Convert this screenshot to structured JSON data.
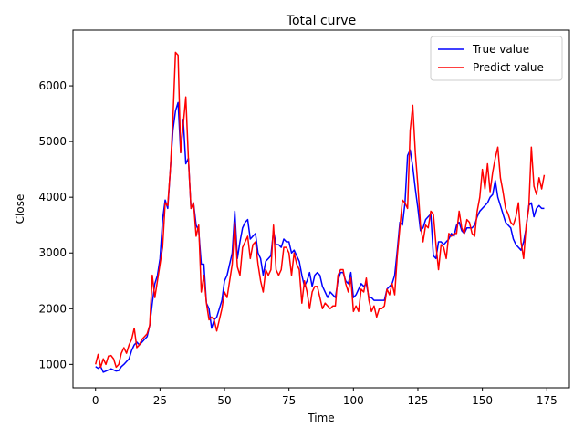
{
  "chart_data": {
    "type": "line",
    "title": "Total curve",
    "xlabel": "Time",
    "ylabel": "Close",
    "xlim": [
      -8.75,
      183.75
    ],
    "ylim": [
      580,
      7000
    ],
    "xticks": [
      0,
      25,
      50,
      75,
      100,
      125,
      150,
      175
    ],
    "yticks": [
      1000,
      2000,
      3000,
      4000,
      5000,
      6000
    ],
    "grid": false,
    "legend_position": "top-right",
    "series": [
      {
        "name": "True value",
        "color": "#0000ff",
        "values": [
          960,
          930,
          960,
          860,
          880,
          900,
          920,
          900,
          880,
          890,
          960,
          1000,
          1050,
          1100,
          1250,
          1350,
          1400,
          1350,
          1400,
          1450,
          1500,
          1700,
          2100,
          2450,
          2600,
          2900,
          3600,
          3950,
          3800,
          4500,
          5200,
          5550,
          5700,
          4800,
          5400,
          4600,
          4700,
          3800,
          3900,
          3500,
          3400,
          2800,
          2800,
          2100,
          2000,
          1650,
          1800,
          1850,
          2000,
          2150,
          2500,
          2600,
          2800,
          3000,
          3750,
          2900,
          3200,
          3450,
          3550,
          3600,
          3250,
          3300,
          3350,
          3000,
          2900,
          2600,
          2850,
          2900,
          2950,
          3400,
          3150,
          3150,
          3100,
          3250,
          3200,
          3200,
          3000,
          3050,
          2950,
          2850,
          2600,
          2400,
          2500,
          2650,
          2400,
          2600,
          2650,
          2600,
          2400,
          2300,
          2200,
          2300,
          2250,
          2200,
          2500,
          2650,
          2650,
          2500,
          2450,
          2650,
          2200,
          2250,
          2350,
          2450,
          2400,
          2450,
          2200,
          2200,
          2150,
          2150,
          2150,
          2150,
          2150,
          2350,
          2400,
          2450,
          2600,
          3050,
          3550,
          3500,
          3900,
          4750,
          4850,
          4550,
          4150,
          3800,
          3400,
          3450,
          3600,
          3650,
          3700,
          2950,
          2900,
          3200,
          3200,
          3150,
          3200,
          3250,
          3350,
          3300,
          3500,
          3550,
          3400,
          3350,
          3450,
          3450,
          3450,
          3500,
          3650,
          3750,
          3800,
          3850,
          3900,
          4000,
          4050,
          4300,
          4000,
          3850,
          3700,
          3550,
          3500,
          3450,
          3250,
          3150,
          3100,
          3050,
          3200,
          3450,
          3850,
          3900,
          3650,
          3800,
          3850,
          3800,
          3800
        ]
      },
      {
        "name": "Predict value",
        "color": "#ff0000",
        "values": [
          1000,
          1180,
          950,
          1100,
          1000,
          1150,
          1160,
          1100,
          950,
          1000,
          1200,
          1300,
          1200,
          1350,
          1450,
          1650,
          1300,
          1350,
          1450,
          1500,
          1550,
          1700,
          2600,
          2200,
          2500,
          2800,
          3100,
          3900,
          3850,
          4500,
          5400,
          6600,
          6550,
          4800,
          5300,
          5800,
          4700,
          3800,
          3900,
          3300,
          3500,
          2300,
          2600,
          2100,
          1800,
          1850,
          1800,
          1600,
          1800,
          2000,
          2300,
          2200,
          2500,
          2800,
          3550,
          2750,
          2600,
          3100,
          3200,
          3300,
          2900,
          3150,
          3200,
          2800,
          2500,
          2300,
          2700,
          2600,
          2700,
          3500,
          2700,
          2600,
          2700,
          3100,
          3100,
          3000,
          2600,
          3000,
          2800,
          2700,
          2100,
          2500,
          2300,
          2000,
          2300,
          2400,
          2400,
          2200,
          2000,
          2100,
          2050,
          2000,
          2050,
          2050,
          2600,
          2700,
          2700,
          2450,
          2300,
          2550,
          1950,
          2050,
          1950,
          2350,
          2300,
          2550,
          2150,
          1950,
          2050,
          1850,
          2000,
          2000,
          2050,
          2350,
          2250,
          2450,
          2250,
          2950,
          3450,
          3950,
          3900,
          3800,
          5200,
          5650,
          4800,
          4200,
          3500,
          3200,
          3500,
          3450,
          3750,
          3700,
          3150,
          2700,
          3150,
          3100,
          2900,
          3350,
          3300,
          3350,
          3350,
          3750,
          3450,
          3350,
          3600,
          3550,
          3350,
          3300,
          3750,
          4000,
          4500,
          4150,
          4600,
          4100,
          4450,
          4700,
          4900,
          4350,
          4100,
          3800,
          3700,
          3550,
          3500,
          3650,
          3900,
          3200,
          2900,
          3500,
          3800,
          4900,
          4200,
          4050,
          4350,
          4150,
          4400
        ]
      }
    ]
  }
}
